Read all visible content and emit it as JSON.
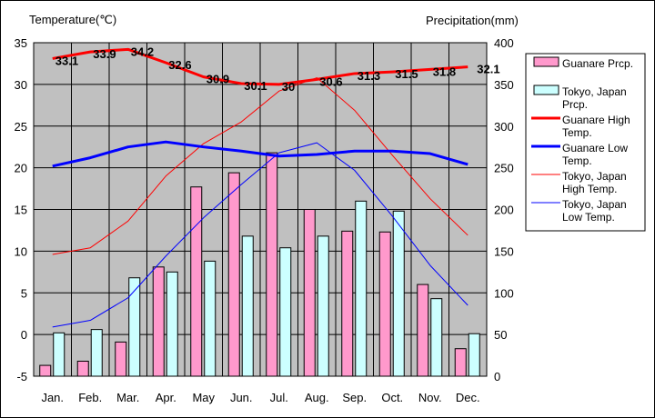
{
  "chart_data": {
    "type": "bar",
    "left_axis_title": "Temperature(℃)",
    "right_axis_title": "Precipitation(mm)",
    "categories": [
      "Jan.",
      "Feb.",
      "Mar.",
      "Apr.",
      "May",
      "Jun.",
      "Jul.",
      "Aug.",
      "Sep.",
      "Oct.",
      "Nov.",
      "Dec."
    ],
    "temp_ylim": [
      -5,
      35
    ],
    "temp_ticks": [
      "-5",
      "0",
      "5",
      "10",
      "15",
      "20",
      "25",
      "30",
      "35"
    ],
    "precip_ylim": [
      0,
      400
    ],
    "precip_ticks": [
      "0",
      "50",
      "100",
      "150",
      "200",
      "250",
      "300",
      "350",
      "400"
    ],
    "grid": true,
    "legend_position": "right",
    "series": [
      {
        "name": "Guanare Prcp.",
        "kind": "bar",
        "axis": "right",
        "color": "#ff99cc",
        "values": [
          13,
          18,
          41,
          131,
          227,
          244,
          268,
          200,
          174,
          173,
          110,
          33
        ]
      },
      {
        "name": "Tokyo, Japan Prcp.",
        "kind": "bar",
        "axis": "right",
        "color": "#ccffff",
        "values": [
          52,
          56,
          118,
          125,
          138,
          168,
          154,
          168,
          210,
          198,
          93,
          51
        ]
      },
      {
        "name": "Guanare High Temp.",
        "kind": "line",
        "axis": "left",
        "color": "#ff0000",
        "width": 3,
        "values": [
          33.1,
          33.9,
          34.2,
          32.6,
          30.9,
          30.1,
          30.0,
          30.6,
          31.3,
          31.5,
          31.8,
          32.1
        ],
        "labels": [
          "33.1",
          "33.9",
          "34.2",
          "32.6",
          "30.9",
          "30.1",
          "30",
          "30.6",
          "31.3",
          "31.5",
          "31.8",
          "32.1"
        ]
      },
      {
        "name": "Guanare Low Temp.",
        "kind": "line",
        "axis": "left",
        "color": "#0000ff",
        "width": 3,
        "values": [
          20.2,
          21.2,
          22.5,
          23.1,
          22.5,
          22.0,
          21.4,
          21.6,
          22.0,
          22.0,
          21.7,
          20.4
        ]
      },
      {
        "name": "Tokyo, Japan High Temp.",
        "kind": "line",
        "axis": "left",
        "color": "#ff0000",
        "width": 1,
        "values": [
          9.6,
          10.4,
          13.6,
          19.0,
          22.9,
          25.5,
          29.2,
          30.8,
          26.9,
          21.5,
          16.3,
          11.9
        ]
      },
      {
        "name": "Tokyo, Japan Low Temp.",
        "kind": "line",
        "axis": "left",
        "color": "#0000ff",
        "width": 1,
        "values": [
          0.9,
          1.7,
          4.4,
          9.4,
          14.0,
          18.0,
          21.8,
          23.0,
          19.7,
          14.2,
          8.3,
          3.5
        ]
      }
    ],
    "legend_entries": [
      {
        "label_lines": [
          "Guanare Prcp."
        ],
        "series": 0
      },
      {
        "label_lines": [
          "Tokyo, Japan",
          "Prcp."
        ],
        "series": 1
      },
      {
        "label_lines": [
          "Guanare High",
          "Temp."
        ],
        "series": 2
      },
      {
        "label_lines": [
          "Guanare Low",
          "Temp."
        ],
        "series": 3
      },
      {
        "label_lines": [
          "Tokyo, Japan",
          "High Temp."
        ],
        "series": 4
      },
      {
        "label_lines": [
          "Tokyo, Japan",
          "Low Temp."
        ],
        "series": 5
      }
    ]
  }
}
